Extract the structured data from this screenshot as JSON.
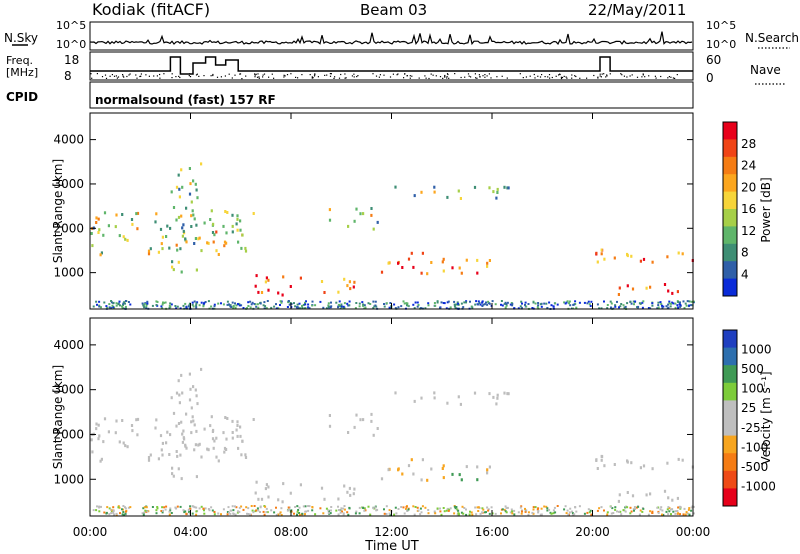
{
  "header": {
    "station": "Kodiak (fitACF)",
    "beam": "Beam 03",
    "date": "22/May/2011"
  },
  "strip_labels": {
    "left": [
      "N.Sky",
      "Freq.",
      "[MHz]",
      "CPID"
    ],
    "right": [
      "N.Search",
      "Nave"
    ],
    "sky_ticks": [
      "10^5",
      "10^0"
    ],
    "search_ticks": [
      "10^5",
      "10^0"
    ],
    "freq_ticks": [
      "18",
      "8"
    ],
    "nave_ticks": [
      "60",
      "0"
    ],
    "cpid_text": "normalsound (fast) 157 RF"
  },
  "colorbars": {
    "power": {
      "label": "Power [dB]",
      "ticks": [
        "28",
        "24",
        "20",
        "16",
        "12",
        "8",
        "4"
      ],
      "colors": [
        "#e8001a",
        "#f04416",
        "#f57c14",
        "#fca61e",
        "#f7d53a",
        "#a6cf48",
        "#5fb56a",
        "#3e8e74",
        "#2f5fa8",
        "#0a2bd8"
      ]
    },
    "velocity": {
      "label": "Velocity [m s⁻¹]",
      "ticks": [
        "1000",
        "500",
        "100",
        "25",
        "-25",
        "-100",
        "-500",
        "-1000"
      ],
      "colors": [
        "#1f3fc0",
        "#2d6fae",
        "#3f9a55",
        "#7dcc3a",
        "#bfbfbf",
        "#bfbfbf",
        "#f7a51f",
        "#f57c14",
        "#ef4a16",
        "#e6001a"
      ]
    }
  },
  "chart_data": [
    {
      "type": "heatmap",
      "name": "power",
      "ylabel": "Slant Range [km]",
      "yticks": [
        "1000",
        "2000",
        "3000",
        "4000"
      ],
      "ylim": [
        180,
        4600
      ],
      "xlim": [
        0,
        24
      ],
      "echo_bands": [
        {
          "t0": 0.0,
          "t1": 6.5,
          "r0": 1400,
          "r1": 2400,
          "level": 14
        },
        {
          "t0": 3.2,
          "t1": 4.5,
          "r0": 800,
          "r1": 3500,
          "level": 12
        },
        {
          "t0": 4.8,
          "t1": 6.2,
          "r0": 1600,
          "r1": 2500,
          "level": 18
        },
        {
          "t0": 6.5,
          "t1": 10.5,
          "r0": 500,
          "r1": 1000,
          "level": 24
        },
        {
          "t0": 9.5,
          "t1": 11.5,
          "r0": 2000,
          "r1": 2500,
          "level": 14
        },
        {
          "t0": 11.5,
          "t1": 16.0,
          "r0": 1000,
          "r1": 1500,
          "level": 24
        },
        {
          "t0": 12.0,
          "t1": 17.0,
          "r0": 2700,
          "r1": 3000,
          "level": 12
        },
        {
          "t0": 20.0,
          "t1": 24.0,
          "r0": 1200,
          "r1": 1600,
          "level": 22
        },
        {
          "t0": 21.0,
          "t1": 24.0,
          "r0": 500,
          "r1": 800,
          "level": 22
        }
      ]
    },
    {
      "type": "heatmap",
      "name": "velocity",
      "ylabel": "Slant Range [km]",
      "yticks": [
        "1000",
        "2000",
        "3000",
        "4000"
      ],
      "ylim": [
        180,
        4600
      ],
      "xlim": [
        0,
        24
      ],
      "xticks": [
        "00:00",
        "04:00",
        "08:00",
        "12:00",
        "16:00",
        "20:00",
        "00:00"
      ],
      "xlabel": "Time UT"
    }
  ]
}
